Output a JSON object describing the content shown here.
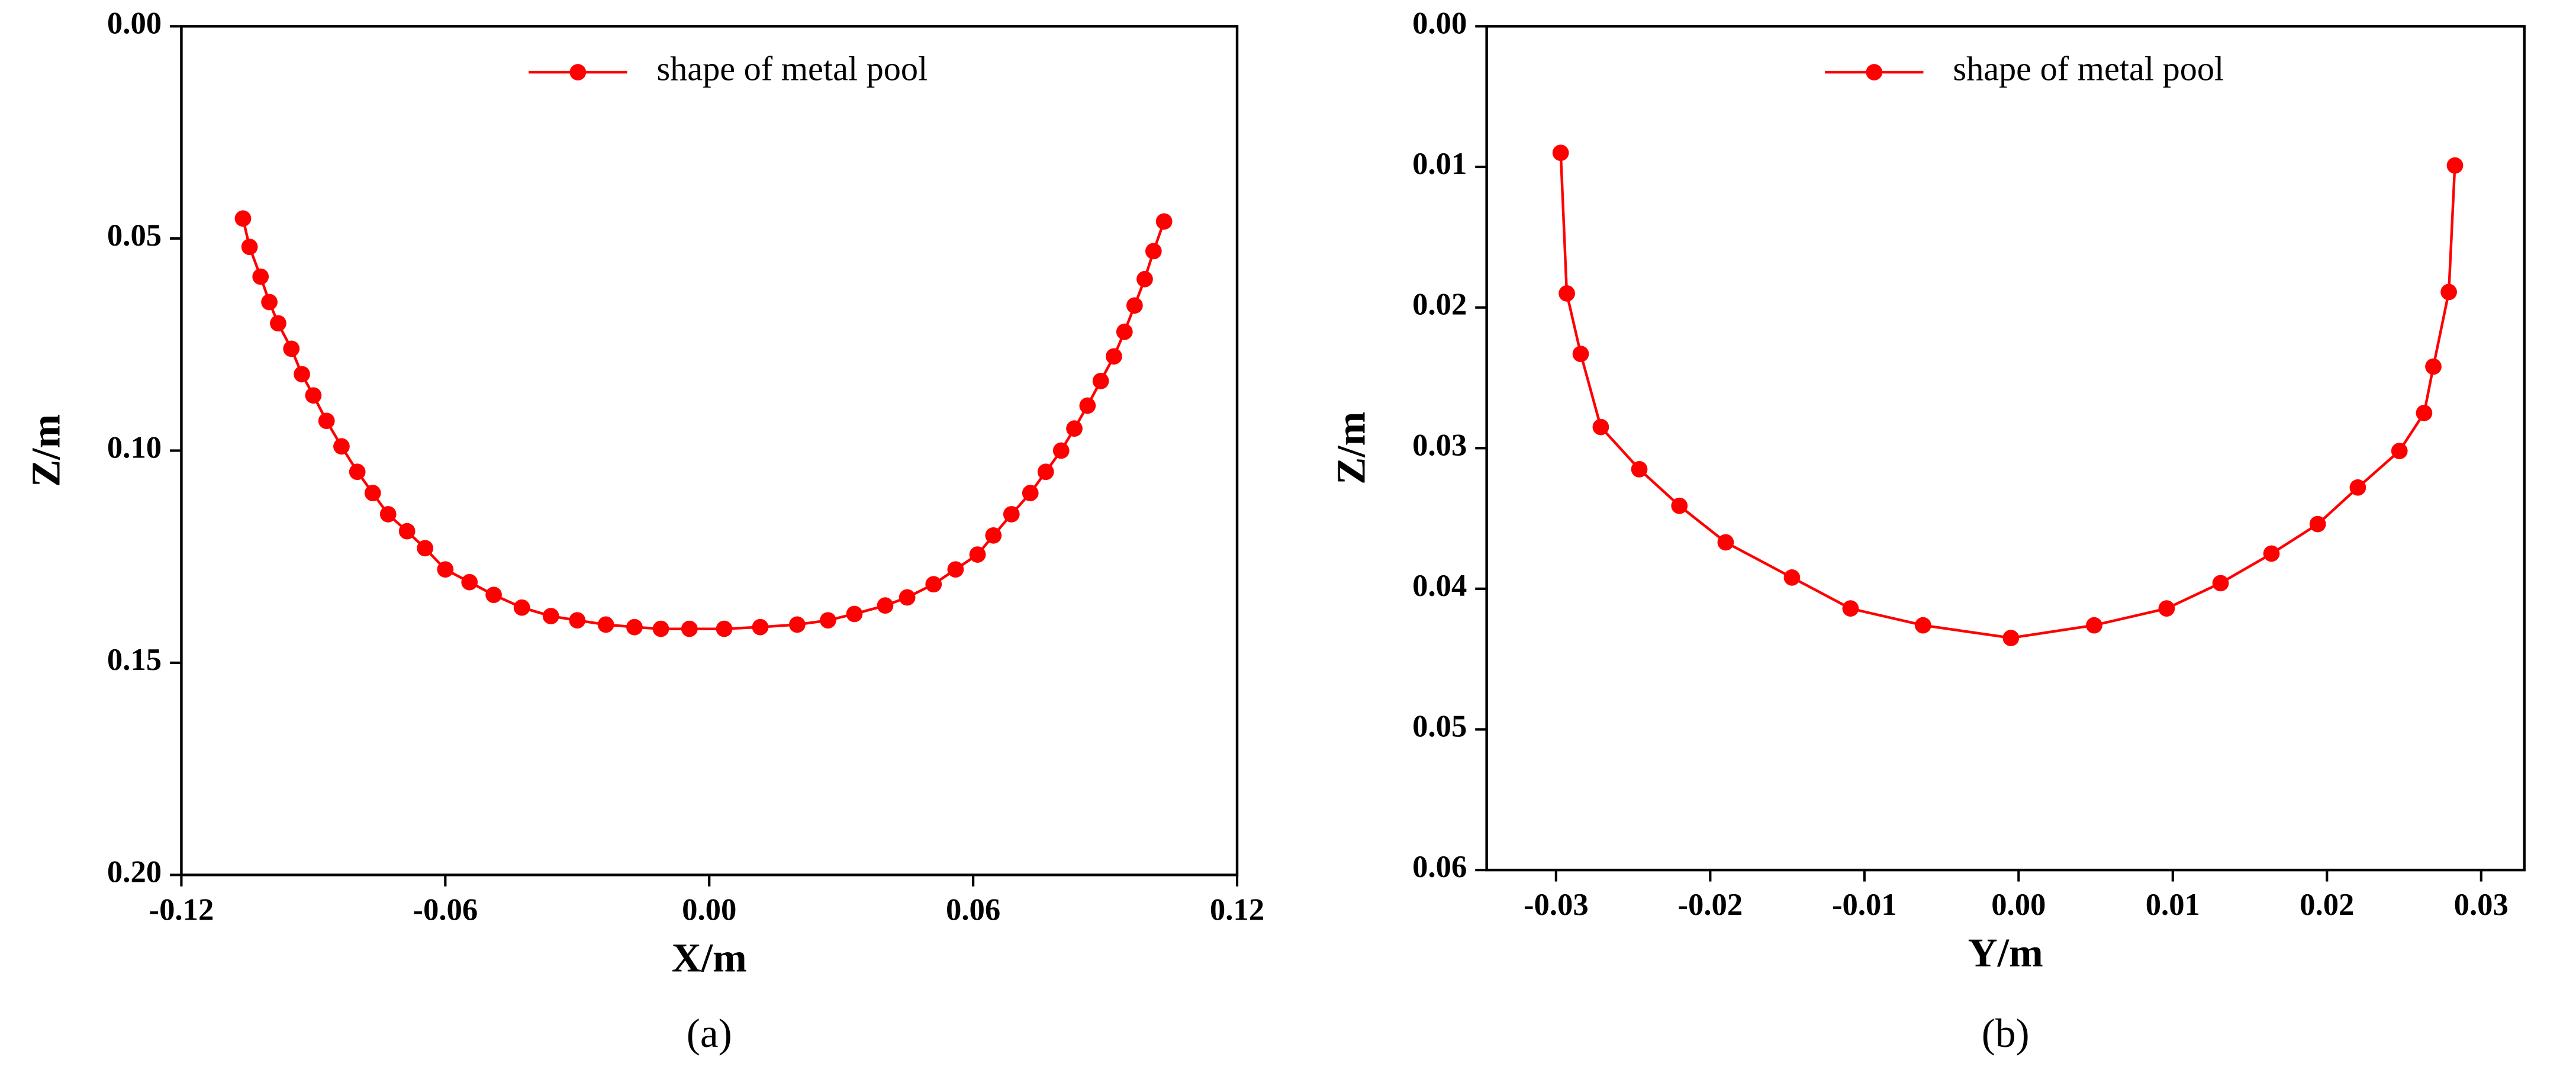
{
  "chart_data": [
    {
      "type": "line",
      "label": "(a)",
      "x_label": "X/m",
      "y_label": "Z/m",
      "y_reversed": true,
      "legend": "top-center",
      "xlim": [
        -0.12,
        0.12
      ],
      "xticks": [
        -0.12,
        -0.06,
        {
          "value": 0,
          "label": "0.00"
        },
        0.06,
        0.12
      ],
      "ylim": [
        0,
        0.2
      ],
      "yticks": [
        {
          "value": 0,
          "label": "0.00"
        },
        0.05,
        {
          "value": 0.1,
          "label": "0.10"
        },
        0.15,
        {
          "value": 0.2,
          "label": "0.20"
        }
      ],
      "x": [
        -0.106,
        -0.1045,
        -0.102,
        -0.1,
        -0.098,
        -0.095,
        -0.0926,
        -0.09,
        -0.087,
        -0.0836,
        -0.08,
        -0.0765,
        -0.073,
        -0.0687,
        -0.0646,
        -0.06,
        -0.0545,
        -0.049,
        -0.0426,
        -0.036,
        -0.03,
        -0.0235,
        -0.017,
        -0.011,
        -0.0045,
        0.0034,
        0.0116,
        0.02,
        0.027,
        0.033,
        0.04,
        0.045,
        0.051,
        0.056,
        0.061,
        0.0646,
        0.0687,
        0.073,
        0.0765,
        0.08,
        0.083,
        0.086,
        0.089,
        0.092,
        0.0944,
        0.0967,
        0.099,
        0.101,
        0.1034
      ],
      "series": [
        {
          "name": "shape of metal pool",
          "color": "#ff0000",
          "values": [
            0.0453,
            0.052,
            0.059,
            0.065,
            0.07,
            0.076,
            0.082,
            0.087,
            0.093,
            0.099,
            0.105,
            0.11,
            0.115,
            0.119,
            0.123,
            0.128,
            0.131,
            0.134,
            0.137,
            0.139,
            0.14,
            0.141,
            0.1416,
            0.142,
            0.142,
            0.142,
            0.1416,
            0.141,
            0.14,
            0.1385,
            0.1365,
            0.1346,
            0.1315,
            0.128,
            0.1245,
            0.12,
            0.115,
            0.11,
            0.105,
            0.1,
            0.0948,
            0.0894,
            0.0836,
            0.0778,
            0.072,
            0.0658,
            0.0596,
            0.053,
            0.046
          ]
        }
      ]
    },
    {
      "type": "line",
      "label": "(b)",
      "x_label": "Y/m",
      "y_label": "Z/m",
      "y_reversed": true,
      "legend": "top-center",
      "xlim": [
        -0.0345,
        0.0328
      ],
      "xticks": [
        -0.03,
        -0.02,
        -0.01,
        {
          "value": 0,
          "label": "0.00"
        },
        0.01,
        0.02,
        0.03
      ],
      "ylim": [
        0,
        0.06
      ],
      "yticks": [
        {
          "value": 0,
          "label": "0.00"
        },
        0.01,
        0.02,
        0.03,
        0.04,
        0.05,
        0.06
      ],
      "x": [
        -0.0297,
        -0.0293,
        -0.0284,
        -0.0271,
        -0.0246,
        -0.022,
        -0.019,
        -0.0147,
        -0.0109,
        -0.0062,
        -0.0005,
        0.0049,
        0.0096,
        0.0131,
        0.0164,
        0.0194,
        0.022,
        0.0247,
        0.0263,
        0.0269,
        0.0279,
        0.0283
      ],
      "series": [
        {
          "name": "shape of metal pool",
          "color": "#ff0000",
          "values": [
            0.009,
            0.019,
            0.0233,
            0.0285,
            0.0315,
            0.0341,
            0.0367,
            0.0392,
            0.0414,
            0.0426,
            0.0435,
            0.0426,
            0.0414,
            0.0396,
            0.0375,
            0.0354,
            0.0328,
            0.0302,
            0.0275,
            0.0242,
            0.0189,
            0.0099
          ]
        }
      ]
    }
  ]
}
